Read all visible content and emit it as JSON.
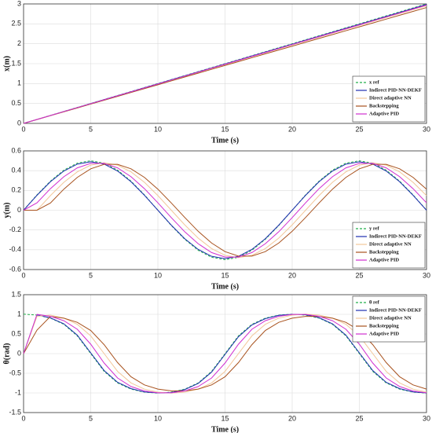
{
  "chart_data": [
    {
      "type": "line",
      "xlabel": "Time (s)",
      "ylabel": "x(m)",
      "legend": "lower right",
      "grid": true,
      "x": [
        0,
        1,
        2,
        3,
        4,
        5,
        6,
        7,
        8,
        9,
        10,
        11,
        12,
        13,
        14,
        15,
        16,
        17,
        18,
        19,
        20,
        21,
        22,
        23,
        24,
        25,
        26,
        27,
        28,
        29,
        30
      ],
      "xlim": [
        0,
        30
      ],
      "xticks": [
        0,
        5,
        10,
        15,
        20,
        25,
        30
      ],
      "ylim": [
        0,
        3
      ],
      "yticks": [
        0,
        0.5,
        1,
        1.5,
        2,
        2.5,
        3
      ],
      "series": [
        {
          "name": "x ref",
          "color": "#22b04a",
          "dashed": true,
          "values": [
            0,
            0.1,
            0.2,
            0.3,
            0.4,
            0.5,
            0.6,
            0.7,
            0.8,
            0.9,
            1,
            1.1,
            1.2,
            1.3,
            1.4,
            1.5,
            1.6,
            1.7,
            1.8,
            1.9,
            2,
            2.1,
            2.2,
            2.3,
            2.4,
            2.5,
            2.6,
            2.7,
            2.8,
            2.9,
            3
          ]
        },
        {
          "name": "Indirect PID-NN-DEKF",
          "color": "#1f2fb0",
          "values": [
            0,
            0.1,
            0.199,
            0.299,
            0.398,
            0.498,
            0.597,
            0.697,
            0.796,
            0.896,
            0.995,
            1.095,
            1.194,
            1.294,
            1.393,
            1.493,
            1.592,
            1.692,
            1.791,
            1.891,
            1.99,
            2.09,
            2.189,
            2.289,
            2.388,
            2.488,
            2.587,
            2.687,
            2.786,
            2.886,
            2.985
          ]
        },
        {
          "name": "Direct adaptive NN",
          "color": "#f2c79a",
          "values": [
            0,
            0.099,
            0.197,
            0.296,
            0.394,
            0.493,
            0.591,
            0.69,
            0.788,
            0.887,
            0.985,
            1.084,
            1.182,
            1.281,
            1.379,
            1.478,
            1.576,
            1.675,
            1.773,
            1.872,
            1.97,
            2.069,
            2.167,
            2.266,
            2.364,
            2.463,
            2.561,
            2.66,
            2.758,
            2.857,
            2.955
          ]
        },
        {
          "name": "Backstepping",
          "color": "#a8521e",
          "values": [
            0,
            0.097,
            0.194,
            0.291,
            0.388,
            0.485,
            0.582,
            0.679,
            0.776,
            0.873,
            0.97,
            1.067,
            1.164,
            1.261,
            1.358,
            1.455,
            1.552,
            1.649,
            1.746,
            1.843,
            1.94,
            2.037,
            2.134,
            2.231,
            2.328,
            2.425,
            2.522,
            2.619,
            2.716,
            2.813,
            2.91
          ]
        },
        {
          "name": "Adaptive PID",
          "color": "#d02ed0",
          "values": [
            0,
            0.099,
            0.198,
            0.297,
            0.396,
            0.495,
            0.594,
            0.693,
            0.792,
            0.891,
            0.99,
            1.089,
            1.188,
            1.287,
            1.386,
            1.485,
            1.584,
            1.683,
            1.782,
            1.881,
            1.98,
            2.079,
            2.178,
            2.277,
            2.376,
            2.475,
            2.574,
            2.673,
            2.772,
            2.871,
            2.97
          ]
        }
      ]
    },
    {
      "type": "line",
      "xlabel": "Time (s)",
      "ylabel": "y(m)",
      "legend": "lower right",
      "grid": true,
      "x": [
        0,
        1,
        2,
        3,
        4,
        5,
        6,
        7,
        8,
        9,
        10,
        11,
        12,
        13,
        14,
        15,
        16,
        17,
        18,
        19,
        20,
        21,
        22,
        23,
        24,
        25,
        26,
        27,
        28,
        29,
        30
      ],
      "xlim": [
        0,
        30
      ],
      "xticks": [
        0,
        5,
        10,
        15,
        20,
        25,
        30
      ],
      "ylim": [
        -0.6,
        0.6
      ],
      "yticks": [
        -0.6,
        -0.4,
        -0.2,
        0,
        0.2,
        0.4,
        0.6
      ],
      "series": [
        {
          "name": "y ref",
          "color": "#22b04a",
          "dashed": true,
          "values": [
            0,
            0.155,
            0.294,
            0.405,
            0.476,
            0.5,
            0.476,
            0.405,
            0.294,
            0.155,
            0,
            -0.155,
            -0.294,
            -0.405,
            -0.476,
            -0.5,
            -0.476,
            -0.405,
            -0.294,
            -0.155,
            0,
            0.155,
            0.294,
            0.405,
            0.476,
            0.5,
            0.476,
            0.405,
            0.294,
            0.155,
            0
          ]
        },
        {
          "name": "Indirect PID-NN-DEKF",
          "color": "#1f2fb0",
          "values": [
            0,
            0.151,
            0.288,
            0.396,
            0.466,
            0.49,
            0.466,
            0.396,
            0.288,
            0.151,
            0,
            -0.151,
            -0.288,
            -0.396,
            -0.466,
            -0.49,
            -0.466,
            -0.396,
            -0.288,
            -0.151,
            0,
            0.151,
            0.288,
            0.396,
            0.466,
            0.49,
            0.466,
            0.396,
            0.288,
            0.151,
            0
          ]
        },
        {
          "name": "Direct adaptive NN",
          "color": "#f2c79a",
          "values": [
            0,
            0,
            0.148,
            0.282,
            0.388,
            0.456,
            0.48,
            0.456,
            0.388,
            0.282,
            0.148,
            0,
            -0.148,
            -0.282,
            -0.388,
            -0.456,
            -0.48,
            -0.456,
            -0.388,
            -0.282,
            -0.148,
            0,
            0.148,
            0.282,
            0.388,
            0.456,
            0.48,
            0.456,
            0.388,
            0.282,
            0.148
          ]
        },
        {
          "name": "Backstepping",
          "color": "#a8521e",
          "values": [
            0,
            0,
            0.073,
            0.213,
            0.332,
            0.419,
            0.464,
            0.464,
            0.419,
            0.332,
            0.213,
            0.073,
            -0.073,
            -0.213,
            -0.332,
            -0.419,
            -0.464,
            -0.464,
            -0.419,
            -0.332,
            -0.213,
            -0.073,
            0.073,
            0.213,
            0.332,
            0.419,
            0.464,
            0.464,
            0.419,
            0.332,
            0.213
          ]
        },
        {
          "name": "Adaptive PID",
          "color": "#d02ed0",
          "values": [
            0,
            0.075,
            0.218,
            0.339,
            0.428,
            0.474,
            0.474,
            0.428,
            0.339,
            0.218,
            0.075,
            -0.075,
            -0.218,
            -0.339,
            -0.428,
            -0.474,
            -0.474,
            -0.428,
            -0.339,
            -0.218,
            -0.075,
            0.075,
            0.218,
            0.339,
            0.428,
            0.474,
            0.474,
            0.428,
            0.339,
            0.218,
            0.075
          ]
        }
      ]
    },
    {
      "type": "line",
      "xlabel": "Time (s)",
      "ylabel": "θ(rad)",
      "legend": "upper right",
      "grid": true,
      "x": [
        0,
        1,
        2,
        3,
        4,
        5,
        6,
        7,
        8,
        9,
        10,
        11,
        12,
        13,
        14,
        15,
        16,
        17,
        18,
        19,
        20,
        21,
        22,
        23,
        24,
        25,
        26,
        27,
        28,
        29,
        30
      ],
      "xlim": [
        0,
        30
      ],
      "xticks": [
        0,
        5,
        10,
        15,
        20,
        25,
        30
      ],
      "ylim": [
        -1.5,
        1.5
      ],
      "yticks": [
        -1.5,
        -1,
        -0.5,
        0,
        0.5,
        1,
        1.5
      ],
      "series": [
        {
          "name": "θ ref",
          "color": "#22b04a",
          "dashed": true,
          "values": [
            1.004,
            0.981,
            0.904,
            0.746,
            0.452,
            0,
            -0.452,
            -0.746,
            -0.904,
            -0.981,
            -1.004,
            -0.981,
            -0.904,
            -0.746,
            -0.452,
            0,
            0.452,
            0.746,
            0.904,
            0.981,
            1.004,
            0.981,
            0.904,
            0.746,
            0.452,
            0,
            -0.452,
            -0.746,
            -0.904,
            -0.981,
            -1.004
          ]
        },
        {
          "name": "Indirect PID-NN-DEKF",
          "color": "#1f2fb0",
          "values": [
            0,
            0.985,
            0.91,
            0.76,
            0.47,
            0.02,
            -0.43,
            -0.73,
            -0.89,
            -0.975,
            -1,
            -0.99,
            -0.915,
            -0.76,
            -0.47,
            -0.02,
            0.43,
            0.73,
            0.89,
            0.975,
            1,
            0.99,
            0.915,
            0.76,
            0.47,
            0.02,
            -0.43,
            -0.73,
            -0.89,
            -0.975,
            -1
          ]
        },
        {
          "name": "Direct adaptive NN",
          "color": "#f2c79a",
          "values": [
            0,
            0.95,
            0.981,
            0.904,
            0.746,
            0.452,
            0,
            -0.452,
            -0.746,
            -0.904,
            -0.981,
            -1.004,
            -0.981,
            -0.904,
            -0.746,
            -0.452,
            0,
            0.452,
            0.746,
            0.904,
            0.981,
            1.004,
            0.981,
            0.904,
            0.746,
            0.452,
            0,
            -0.452,
            -0.746,
            -0.904,
            -0.981
          ]
        },
        {
          "name": "Backstepping",
          "color": "#a8521e",
          "values": [
            0,
            0.6,
            0.948,
            0.903,
            0.796,
            0.589,
            0.228,
            -0.228,
            -0.589,
            -0.796,
            -0.903,
            -0.948,
            -0.948,
            -0.903,
            -0.796,
            -0.589,
            -0.228,
            0.228,
            0.589,
            0.796,
            0.903,
            0.948,
            0.948,
            0.903,
            0.796,
            0.589,
            0.228,
            -0.228,
            -0.589,
            -0.796,
            -0.903
          ]
        },
        {
          "name": "Adaptive PID",
          "color": "#d02ed0",
          "values": [
            0,
            0.998,
            0.95,
            0.838,
            0.62,
            0.24,
            -0.24,
            -0.62,
            -0.838,
            -0.95,
            -0.998,
            -0.998,
            -0.95,
            -0.838,
            -0.62,
            -0.24,
            0.24,
            0.62,
            0.838,
            0.95,
            0.998,
            0.998,
            0.95,
            0.838,
            0.62,
            0.24,
            -0.24,
            -0.62,
            -0.838,
            -0.95,
            -0.998
          ]
        }
      ]
    }
  ]
}
